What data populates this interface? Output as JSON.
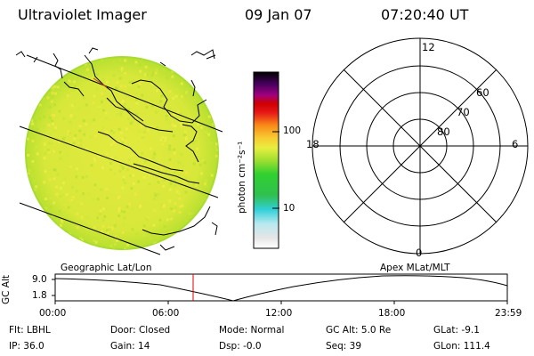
{
  "header": {
    "title": "Ultraviolet Imager",
    "date": "09 Jan 07",
    "time": "07:20:40 UT"
  },
  "colorbar": {
    "unit_label": "photon cm⁻²s⁻¹",
    "ticks": [
      {
        "label": "100",
        "value": 100
      },
      {
        "label": "10",
        "value": 10
      }
    ]
  },
  "polar_plot": {
    "mlt_labels": {
      "top": "12",
      "left": "18",
      "right": "6",
      "bottom": "0"
    },
    "lat_labels": [
      "60",
      "70",
      "80"
    ]
  },
  "track": {
    "left_title": "Geographic Lat/Lon",
    "right_title": "Apex MLat/MLT",
    "y_label": "GC Alt",
    "y_ticks": [
      "9.0",
      "1.8"
    ],
    "x_ticks": [
      "00:00",
      "06:00",
      "12:00",
      "18:00",
      "23:59"
    ]
  },
  "status": {
    "row1": [
      "Flt: LBHL",
      "Door: Closed",
      "Mode: Normal",
      "GC Alt: 5.0 Re",
      "GLat:  -9.1"
    ],
    "row2": [
      "IP: 36.0",
      "Gain: 14",
      "Dsp:   -0.0",
      "Seq: 39",
      "GLon: 111.4"
    ]
  },
  "colors": {
    "disk": "#dce83a",
    "cursor": "#e00000"
  }
}
